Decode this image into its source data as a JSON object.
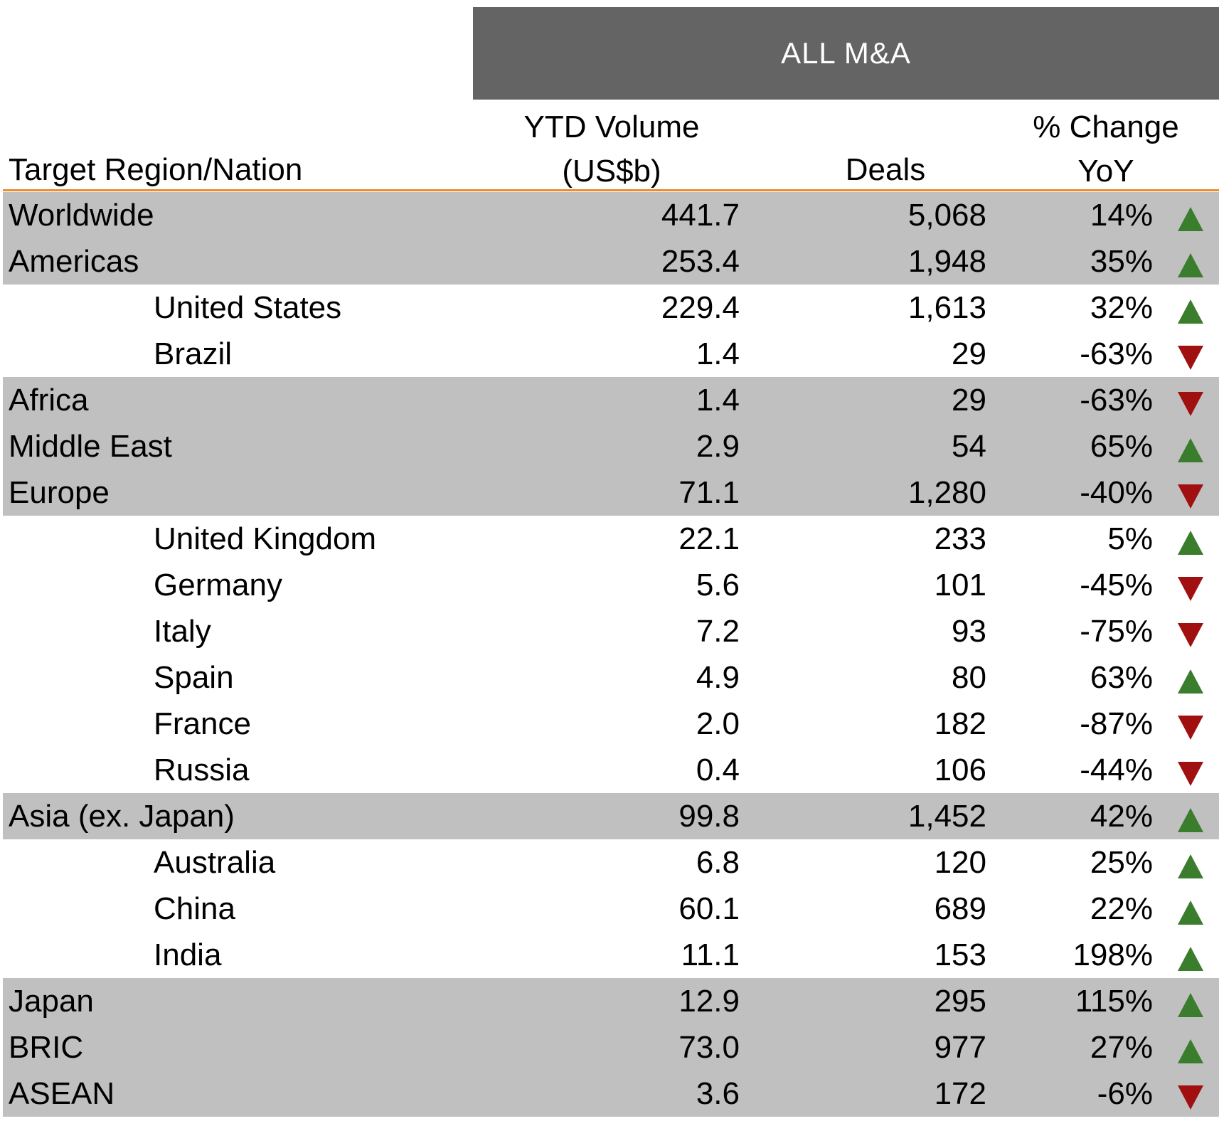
{
  "banner": "ALL M&A",
  "headers": {
    "region": "Target Region/Nation",
    "volume_line1": "YTD Volume",
    "volume_line2": "(US$b)",
    "deals": "Deals",
    "change_line1": "% Change",
    "change_line2": "YoY"
  },
  "colors": {
    "up": "#3a7d2c",
    "down": "#a01010",
    "shade": "#c0c0c0",
    "banner": "#646464",
    "rule": "#f08a2c"
  },
  "rows": [
    {
      "name": "Worldwide",
      "volume": "441.7",
      "deals": "5,068",
      "change": "14%",
      "direction": "up",
      "level": "region",
      "shaded": true
    },
    {
      "name": "Americas",
      "volume": "253.4",
      "deals": "1,948",
      "change": "35%",
      "direction": "up",
      "level": "region",
      "shaded": true
    },
    {
      "name": "United States",
      "volume": "229.4",
      "deals": "1,613",
      "change": "32%",
      "direction": "up",
      "level": "nation",
      "shaded": false
    },
    {
      "name": "Brazil",
      "volume": "1.4",
      "deals": "29",
      "change": "-63%",
      "direction": "down",
      "level": "nation",
      "shaded": false
    },
    {
      "name": "Africa",
      "volume": "1.4",
      "deals": "29",
      "change": "-63%",
      "direction": "down",
      "level": "region",
      "shaded": true
    },
    {
      "name": "Middle East",
      "volume": "2.9",
      "deals": "54",
      "change": "65%",
      "direction": "up",
      "level": "region",
      "shaded": true
    },
    {
      "name": "Europe",
      "volume": "71.1",
      "deals": "1,280",
      "change": "-40%",
      "direction": "down",
      "level": "region",
      "shaded": true
    },
    {
      "name": "United Kingdom",
      "volume": "22.1",
      "deals": "233",
      "change": "5%",
      "direction": "up",
      "level": "nation",
      "shaded": false
    },
    {
      "name": "Germany",
      "volume": "5.6",
      "deals": "101",
      "change": "-45%",
      "direction": "down",
      "level": "nation",
      "shaded": false
    },
    {
      "name": "Italy",
      "volume": "7.2",
      "deals": "93",
      "change": "-75%",
      "direction": "down",
      "level": "nation",
      "shaded": false
    },
    {
      "name": "Spain",
      "volume": "4.9",
      "deals": "80",
      "change": "63%",
      "direction": "up",
      "level": "nation",
      "shaded": false
    },
    {
      "name": "France",
      "volume": "2.0",
      "deals": "182",
      "change": "-87%",
      "direction": "down",
      "level": "nation",
      "shaded": false
    },
    {
      "name": "Russia",
      "volume": "0.4",
      "deals": "106",
      "change": "-44%",
      "direction": "down",
      "level": "nation",
      "shaded": false
    },
    {
      "name": "Asia (ex. Japan)",
      "volume": "99.8",
      "deals": "1,452",
      "change": "42%",
      "direction": "up",
      "level": "region",
      "shaded": true
    },
    {
      "name": "Australia",
      "volume": "6.8",
      "deals": "120",
      "change": "25%",
      "direction": "up",
      "level": "nation",
      "shaded": false
    },
    {
      "name": "China",
      "volume": "60.1",
      "deals": "689",
      "change": "22%",
      "direction": "up",
      "level": "nation",
      "shaded": false
    },
    {
      "name": "India",
      "volume": "11.1",
      "deals": "153",
      "change": "198%",
      "direction": "up",
      "level": "nation",
      "shaded": false
    },
    {
      "name": "Japan",
      "volume": "12.9",
      "deals": "295",
      "change": "115%",
      "direction": "up",
      "level": "region",
      "shaded": true
    },
    {
      "name": "BRIC",
      "volume": "73.0",
      "deals": "977",
      "change": "27%",
      "direction": "up",
      "level": "region",
      "shaded": true
    },
    {
      "name": "ASEAN",
      "volume": "3.6",
      "deals": "172",
      "change": "-6%",
      "direction": "down",
      "level": "region",
      "shaded": true
    }
  ]
}
